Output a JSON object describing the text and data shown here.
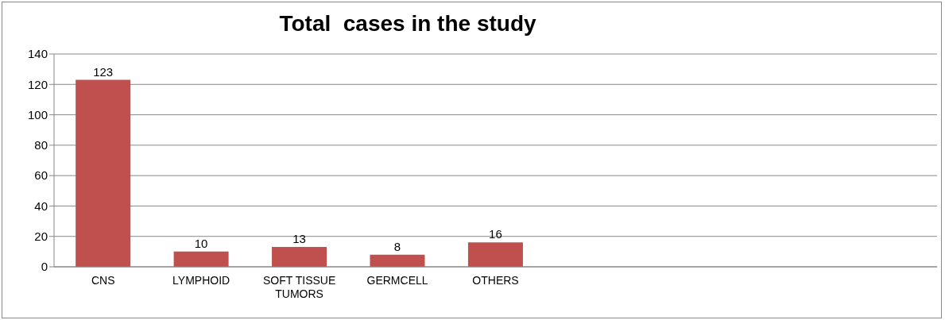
{
  "chart_data": {
    "type": "bar",
    "title": "Total  cases in the study",
    "categories": [
      "CNS",
      "LYMPHOID",
      "SOFT TISSUE TUMORS",
      "GERMCELL",
      "OTHERS",
      null,
      null,
      null,
      null
    ],
    "values": [
      123,
      10,
      13,
      8,
      16,
      null,
      null,
      null,
      null
    ],
    "color": "#c0504d",
    "ylim": [
      0,
      140
    ],
    "yticks": [
      0,
      20,
      40,
      60,
      80,
      100,
      120,
      140
    ],
    "grid": "y",
    "data_labels": true,
    "legend": false
  }
}
